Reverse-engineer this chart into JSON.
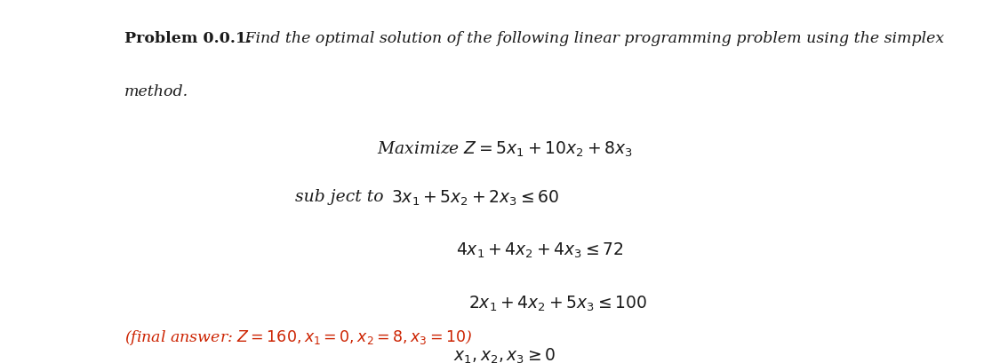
{
  "bg_color": "#ffffff",
  "text_color": "#1a1a1a",
  "answer_color": "#cc2200",
  "figsize": [
    11.25,
    4.09
  ],
  "dpi": 100,
  "title_bold": "Problem 0.0.1.",
  "title_italic": " Find the optimal solution of the following linear programming problem using the simplex",
  "title_italic2": "method.",
  "maximize_line": "Maximize $Z = 5x_1 + 10x_2 + 8x_3$",
  "subject_label": "sub ject to ",
  "constraint1": "$3x_1 + 5x_2 + 2x_3 \\leq 60$",
  "constraint2": "$4x_1 + 4x_2 + 4x_3 \\leq 72$",
  "constraint3": "$2x_1 + 4x_2 + 5x_3 \\leq 100$",
  "constraint4": "$x_1,x_2,x_3 \\geq 0$",
  "answer_line": "(final answer: $Z = 160, x_1 = 0, x_2 = 8, x_3 = 10$)",
  "font_size_title": 12.5,
  "font_size_body": 13.5,
  "font_size_answer": 12.5
}
